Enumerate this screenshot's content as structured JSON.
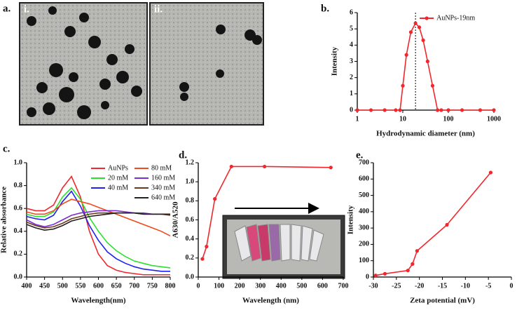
{
  "panel_a": {
    "label": "a.",
    "images": [
      {
        "label": "i."
      },
      {
        "label": "ii."
      }
    ]
  },
  "chart_data": [
    {
      "type": "line",
      "panel": "b.",
      "x_label": "Hydrodynamic diameter (nm)",
      "y_label": "Intensity",
      "xscale": "log",
      "xlim": [
        1,
        1000
      ],
      "xticks": [
        1,
        10,
        100,
        1000
      ],
      "ylim": [
        0,
        6
      ],
      "yticks": [
        0,
        1,
        2,
        3,
        4,
        5,
        6
      ],
      "x": [
        1,
        2,
        4,
        7,
        8.7,
        10,
        12,
        15,
        19,
        23,
        28,
        35,
        45,
        58,
        70,
        100,
        200,
        500,
        1000
      ],
      "series": [
        {
          "name": "AuNPs-19nm",
          "color": "#f0282d",
          "values": [
            0,
            0,
            0,
            0,
            0,
            1.5,
            3.4,
            4.8,
            5.35,
            5.1,
            4.3,
            3.0,
            1.5,
            0,
            0,
            0,
            0,
            0,
            0
          ]
        }
      ],
      "ref_x": 19,
      "markers": true,
      "legend": "upper right"
    },
    {
      "type": "line",
      "panel": "c.",
      "x_label": "Wavelength(nm)",
      "y_label": "Relative absorbance",
      "xlim": [
        400,
        800
      ],
      "xticks": [
        400,
        450,
        500,
        550,
        600,
        650,
        700,
        750,
        800
      ],
      "ylim": [
        0,
        1
      ],
      "yticks": [
        {
          "value": 0,
          "label": "0.0"
        },
        0.2,
        0.4,
        0.6,
        0.8,
        {
          "value": 1,
          "label": "1.0"
        }
      ],
      "x": [
        400,
        425,
        450,
        475,
        500,
        525,
        550,
        575,
        600,
        625,
        650,
        675,
        700,
        725,
        750,
        775,
        800
      ],
      "series": [
        {
          "name": "AuNPs",
          "color": "#f0282d",
          "values": [
            0.6,
            0.58,
            0.58,
            0.63,
            0.78,
            0.88,
            0.7,
            0.4,
            0.2,
            0.1,
            0.06,
            0.04,
            0.03,
            0.02,
            0.02,
            0.02,
            0.02
          ]
        },
        {
          "name": "20 mM",
          "color": "#2ee02e",
          "values": [
            0.55,
            0.53,
            0.53,
            0.57,
            0.7,
            0.78,
            0.68,
            0.52,
            0.4,
            0.3,
            0.23,
            0.18,
            0.14,
            0.12,
            0.1,
            0.09,
            0.08
          ]
        },
        {
          "name": "40 mM",
          "color": "#2020f0",
          "values": [
            0.53,
            0.51,
            0.5,
            0.54,
            0.66,
            0.75,
            0.62,
            0.45,
            0.32,
            0.22,
            0.16,
            0.12,
            0.09,
            0.07,
            0.06,
            0.05,
            0.05
          ]
        },
        {
          "name": "80 mM",
          "color": "#f04a1e",
          "values": [
            0.57,
            0.55,
            0.55,
            0.58,
            0.64,
            0.68,
            0.66,
            0.64,
            0.61,
            0.58,
            0.55,
            0.52,
            0.49,
            0.46,
            0.43,
            0.4,
            0.36
          ]
        },
        {
          "name": "160 mM",
          "color": "#7a2fd0",
          "values": [
            0.5,
            0.46,
            0.44,
            0.46,
            0.5,
            0.54,
            0.56,
            0.57,
            0.58,
            0.58,
            0.58,
            0.57,
            0.56,
            0.56,
            0.55,
            0.55,
            0.55
          ]
        },
        {
          "name": "340 mM",
          "color": "#6b3a1e",
          "values": [
            0.48,
            0.45,
            0.43,
            0.44,
            0.47,
            0.51,
            0.53,
            0.55,
            0.56,
            0.56,
            0.56,
            0.56,
            0.56,
            0.55,
            0.55,
            0.55,
            0.54
          ]
        },
        {
          "name": "640 mM",
          "color": "#222222",
          "values": [
            0.46,
            0.43,
            0.41,
            0.42,
            0.45,
            0.49,
            0.51,
            0.53,
            0.54,
            0.55,
            0.56,
            0.56,
            0.56,
            0.55,
            0.55,
            0.55,
            0.55
          ]
        }
      ],
      "markers": false,
      "legend": "upper right"
    },
    {
      "type": "line",
      "panel": "d.",
      "x_label": "Wavelength (nm)",
      "y_label": "A630/A520",
      "xlim": [
        0,
        700
      ],
      "xticks": [
        0,
        100,
        200,
        300,
        400,
        500,
        600,
        700
      ],
      "ylim": [
        0,
        1.2
      ],
      "yticks": [
        {
          "value": 0,
          "label": "0.0"
        },
        0.2,
        0.4,
        0.6,
        0.8,
        {
          "value": 1,
          "label": "1.0"
        },
        1.2
      ],
      "x": [
        20,
        40,
        80,
        160,
        320,
        640
      ],
      "series": [
        {
          "color": "#f0282d",
          "values": [
            0.19,
            0.32,
            0.82,
            1.16,
            1.16,
            1.15
          ]
        }
      ],
      "markers": true
    },
    {
      "type": "line",
      "panel": "e.",
      "x_label": "Zeta potential (mV)",
      "y_label": "Intensity",
      "xlim": [
        -30,
        0
      ],
      "xticks": [
        -30,
        -25,
        -20,
        -15,
        -10,
        -5,
        0
      ],
      "ylim": [
        0,
        700
      ],
      "yticks": [
        0,
        100,
        200,
        300,
        400,
        500,
        600,
        700
      ],
      "x": [
        -29.5,
        -27.5,
        -22.5,
        -21.5,
        -20.5,
        -14,
        -4.5
      ],
      "series": [
        {
          "color": "#f0282d",
          "values": [
            10,
            20,
            40,
            80,
            160,
            320,
            640
          ]
        }
      ],
      "markers": true
    }
  ]
}
